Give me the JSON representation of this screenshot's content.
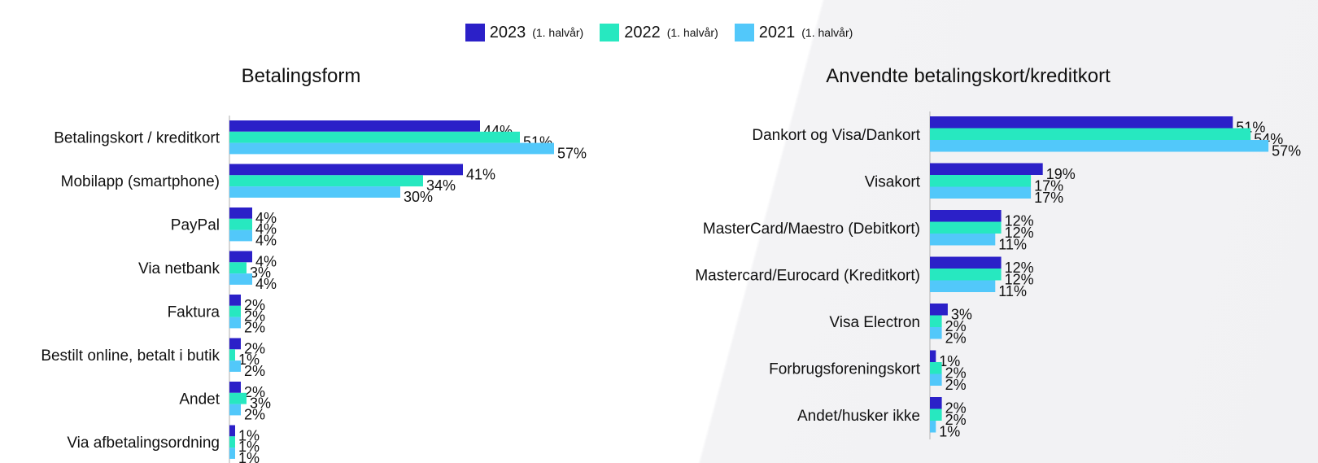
{
  "legend": [
    {
      "year": "2023",
      "note": "(1. halvår)",
      "color": "#2b20c8"
    },
    {
      "year": "2022",
      "note": "(1. halvår)",
      "color": "#27e8c0"
    },
    {
      "year": "2021",
      "note": "(1. halvår)",
      "color": "#52c8fa"
    }
  ],
  "chart_data": [
    {
      "type": "bar",
      "orientation": "horizontal",
      "title": "Betalingsform",
      "categories": [
        "Betalingskort / kreditkort",
        "Mobilapp (smartphone)",
        "PayPal",
        "Via netbank",
        "Faktura",
        "Bestilt online, betalt i butik",
        "Andet",
        "Via afbetalingsordning"
      ],
      "series": [
        {
          "name": "2023 (1. halvår)",
          "values": [
            44,
            41,
            4,
            4,
            2,
            2,
            2,
            1
          ]
        },
        {
          "name": "2022 (1. halvår)",
          "values": [
            51,
            34,
            4,
            3,
            2,
            1,
            3,
            1
          ]
        },
        {
          "name": "2021 (1. halvår)",
          "values": [
            57,
            30,
            4,
            4,
            2,
            2,
            2,
            1
          ]
        }
      ],
      "value_suffix": "%"
    },
    {
      "type": "bar",
      "orientation": "horizontal",
      "title": "Anvendte betalingskort/kreditkort",
      "categories": [
        "Dankort og Visa/Dankort",
        "Visakort",
        "MasterCard/Maestro (Debitkort)",
        "Mastercard/Eurocard (Kreditkort)",
        "Visa Electron",
        "Forbrugsforeningskort",
        "Andet/husker ikke"
      ],
      "series": [
        {
          "name": "2023 (1. halvår)",
          "values": [
            51,
            19,
            12,
            12,
            3,
            1,
            2
          ]
        },
        {
          "name": "2022 (1. halvår)",
          "values": [
            54,
            17,
            12,
            12,
            2,
            2,
            2
          ]
        },
        {
          "name": "2021 (1. halvår)",
          "values": [
            57,
            17,
            11,
            11,
            2,
            2,
            1
          ]
        }
      ],
      "value_suffix": "%"
    }
  ]
}
